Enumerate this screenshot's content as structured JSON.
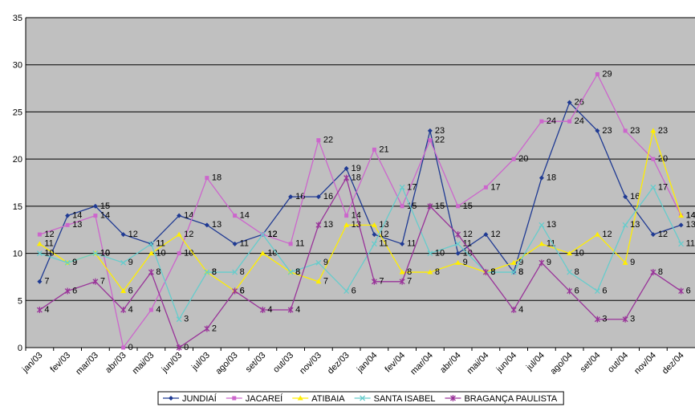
{
  "chart_data": {
    "type": "line",
    "categories": [
      "jan/03",
      "fev/03",
      "mar/03",
      "abr/03",
      "mai/03",
      "jun/03",
      "jul/03",
      "ago/03",
      "set/03",
      "out/03",
      "nov/03",
      "dez/03",
      "jan/04",
      "fev/04",
      "mar/04",
      "abr/04",
      "mai/04",
      "jun/04",
      "jul/04",
      "ago/04",
      "set/04",
      "out/04",
      "nov/04",
      "dez/04"
    ],
    "series": [
      {
        "name": "JUNDIAÍ",
        "color": "#1f3a93",
        "values": [
          7,
          14,
          15,
          12,
          11,
          14,
          13,
          11,
          12,
          16,
          16,
          19,
          12,
          11,
          23,
          10,
          12,
          8,
          18,
          26,
          23,
          16,
          12,
          13
        ]
      },
      {
        "name": "JACAREÍ",
        "color": "#cc66cc",
        "values": [
          12,
          13,
          14,
          0,
          4,
          10,
          18,
          14,
          12,
          11,
          22,
          14,
          21,
          15,
          22,
          15,
          17,
          20,
          24,
          24,
          29,
          23,
          20,
          14
        ]
      },
      {
        "name": "ATIBAIA",
        "color": "#ffee00",
        "values": [
          11,
          9,
          10,
          6,
          10,
          12,
          8,
          6,
          10,
          8,
          7,
          13,
          13,
          8,
          8,
          9,
          8,
          9,
          11,
          10,
          12,
          9,
          23,
          14
        ]
      },
      {
        "name": "SANTA ISABEL",
        "color": "#66cccc",
        "values": [
          10,
          9,
          10,
          9,
          11,
          3,
          8,
          8,
          12,
          8,
          9,
          6,
          11,
          17,
          10,
          11,
          8,
          8,
          13,
          8,
          6,
          13,
          17,
          11
        ]
      },
      {
        "name": "BRAGANÇA PAULISTA",
        "color": "#993399",
        "values": [
          4,
          6,
          7,
          4,
          8,
          0,
          2,
          6,
          4,
          4,
          13,
          18,
          7,
          7,
          15,
          12,
          8,
          4,
          9,
          6,
          3,
          3,
          8,
          6
        ]
      }
    ],
    "ylim": [
      0,
      35
    ],
    "yticks": [
      0,
      5,
      10,
      15,
      20,
      25,
      30,
      35
    ],
    "grid": true,
    "legend": "bottom"
  }
}
